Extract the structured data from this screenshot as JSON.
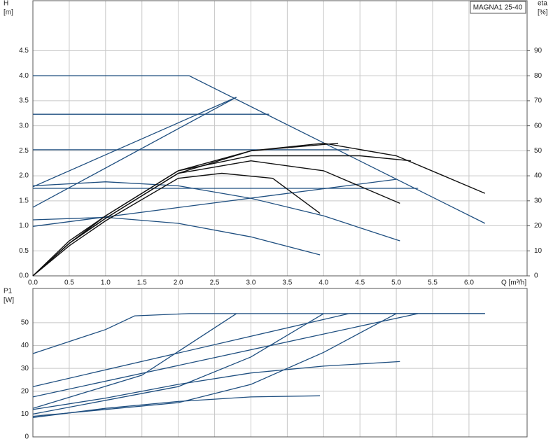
{
  "chart_data": [
    {
      "type": "line",
      "legend_title": "MAGNA1 25-40",
      "ylabel": [
        "H",
        "[m]"
      ],
      "y2label": [
        "eta",
        "[%]"
      ],
      "xlabel": "Q [m³/h]",
      "xlim": [
        0,
        6.8
      ],
      "ylim": [
        0,
        5.5
      ],
      "y2lim": [
        0,
        110
      ],
      "xticks": [
        {
          "value": 0,
          "label": "0.0"
        },
        0.5,
        {
          "value": 1,
          "label": "1.0"
        },
        1.5,
        {
          "value": 2,
          "label": "2.0"
        },
        2.5,
        {
          "value": 3,
          "label": "3.0"
        },
        3.5,
        {
          "value": 4,
          "label": "4.0"
        },
        4.5,
        {
          "value": 5,
          "label": "5.0"
        },
        5.5,
        {
          "value": 6,
          "label": "6.0"
        }
      ],
      "yticks": [
        {
          "value": 0,
          "label": "0.0"
        },
        0.5,
        {
          "value": 1,
          "label": "1.0"
        },
        1.5,
        {
          "value": 2,
          "label": "2.0"
        },
        2.5,
        {
          "value": 3,
          "label": "3.0"
        },
        3.5,
        {
          "value": 4,
          "label": "4.0"
        },
        4.5
      ],
      "y2ticks": [
        0,
        10,
        20,
        30,
        40,
        50,
        60,
        70,
        80,
        90
      ],
      "grid": true,
      "series": [
        {
          "color": "#1f4f80",
          "x": [
            0,
            2.15,
            6.22
          ],
          "values": [
            4.0,
            4.0,
            1.05
          ]
        },
        {
          "color": "#1f4f80",
          "x": [
            0,
            3.25
          ],
          "values": [
            3.23,
            3.23
          ]
        },
        {
          "color": "#1f4f80",
          "x": [
            0,
            4.35
          ],
          "values": [
            2.52,
            2.52
          ]
        },
        {
          "color": "#1f4f80",
          "x": [
            0,
            5.3
          ],
          "values": [
            1.75,
            1.75
          ]
        },
        {
          "color": "#1f4f80",
          "x": [
            0,
            2.8
          ],
          "values": [
            1.37,
            3.57
          ]
        },
        {
          "color": "#1f4f80",
          "x": [
            0,
            2.8
          ],
          "values": [
            1.78,
            3.57
          ]
        },
        {
          "color": "#1f4f80",
          "x": [
            0,
            5.0
          ],
          "values": [
            0.99,
            1.93
          ]
        },
        {
          "color": "#1f4f80",
          "x": [
            0,
            1,
            2,
            3,
            4,
            5.05
          ],
          "values": [
            1.8,
            1.88,
            1.8,
            1.55,
            1.2,
            0.7
          ]
        },
        {
          "color": "#1f4f80",
          "x": [
            0,
            1,
            2,
            3,
            3.95
          ],
          "values": [
            1.12,
            1.17,
            1.05,
            0.78,
            0.42
          ]
        },
        {
          "color": "#111111",
          "axis": "y2",
          "x": [
            0,
            0.5,
            1,
            2,
            3,
            4,
            5,
            6.22
          ],
          "values": [
            0,
            14,
            24,
            42,
            50,
            53,
            48,
            33
          ]
        },
        {
          "color": "#111111",
          "axis": "y2",
          "x": [
            0,
            0.5,
            1,
            2,
            3,
            4,
            4.5,
            5.2
          ],
          "values": [
            0,
            13,
            24,
            42,
            48,
            48,
            48,
            46
          ]
        },
        {
          "color": "#111111",
          "axis": "y2",
          "x": [
            0,
            0.5,
            1,
            2,
            3,
            4,
            5.05
          ],
          "values": [
            0,
            13,
            23,
            41,
            46,
            42,
            29
          ]
        },
        {
          "color": "#111111",
          "axis": "y2",
          "x": [
            0,
            0.5,
            1,
            2,
            2.6,
            3.3,
            3.95
          ],
          "values": [
            0,
            12,
            22,
            39,
            41,
            39,
            25
          ]
        },
        {
          "color": "#111111",
          "axis": "y2",
          "x": [
            0,
            0.5,
            1,
            2,
            3,
            4.2
          ],
          "values": [
            0,
            13,
            23,
            41,
            50,
            53
          ]
        }
      ]
    },
    {
      "type": "line",
      "ylabel": [
        "P1",
        "[W]"
      ],
      "xlim": [
        0,
        6.8
      ],
      "ylim": [
        0,
        65
      ],
      "yticks": [
        0,
        10,
        20,
        30,
        40,
        50
      ],
      "grid": true,
      "series": [
        {
          "color": "#1f4f80",
          "x": [
            0,
            1,
            1.4,
            2.15,
            6.22
          ],
          "values": [
            36.5,
            47,
            53,
            54,
            54
          ]
        },
        {
          "color": "#1f4f80",
          "x": [
            0,
            4.35,
            6.22
          ],
          "values": [
            22,
            54,
            54
          ]
        },
        {
          "color": "#1f4f80",
          "x": [
            0,
            5.3
          ],
          "values": [
            17.5,
            54
          ]
        },
        {
          "color": "#1f4f80",
          "x": [
            0,
            1.5,
            2.8
          ],
          "values": [
            12.5,
            27,
            54
          ]
        },
        {
          "color": "#1f4f80",
          "x": [
            0,
            2,
            3,
            4
          ],
          "values": [
            10,
            22,
            35,
            54
          ]
        },
        {
          "color": "#1f4f80",
          "x": [
            0,
            2,
            3,
            4,
            5
          ],
          "values": [
            9,
            15,
            23,
            37,
            54
          ]
        },
        {
          "color": "#1f4f80",
          "x": [
            0,
            1,
            2,
            3,
            4,
            5.05
          ],
          "values": [
            12,
            17,
            23,
            28,
            31,
            33
          ]
        },
        {
          "color": "#1f4f80",
          "x": [
            0,
            1,
            2,
            3,
            3.95
          ],
          "values": [
            8.5,
            12.5,
            15.5,
            17.5,
            18
          ]
        }
      ]
    }
  ]
}
